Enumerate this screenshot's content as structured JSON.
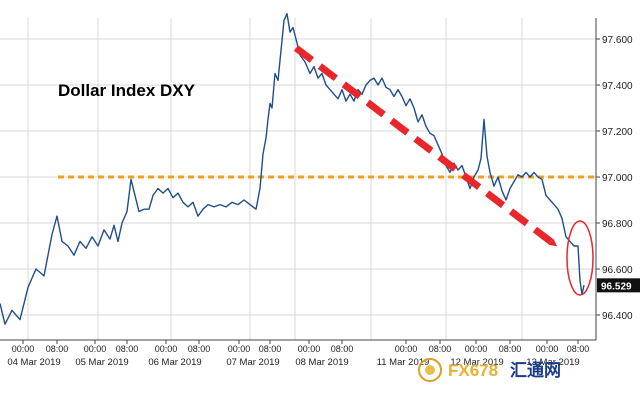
{
  "chart_data": {
    "type": "line",
    "title": "Dollar Index DXY",
    "xlabel": "",
    "ylabel": "",
    "ylim": [
      96.3,
      97.75
    ],
    "yticks": [
      "96.400",
      "96.600",
      "96.800",
      "97.000",
      "97.200",
      "97.400",
      "97.600"
    ],
    "time_ticks": [
      "00:00",
      "08:00",
      "00:00",
      "08:00",
      "00:00",
      "08:00",
      "00:00",
      "08:00",
      "00:00",
      "08:00",
      "00:00",
      "08:00",
      "00:00",
      "08:00",
      "00:00",
      "08:00"
    ],
    "dates": [
      "04 Mar 2019",
      "05 Mar 2019",
      "06 Mar 2019",
      "07 Mar 2019",
      "08 Mar 2019",
      "11 Mar 2019",
      "12 Mar 2019",
      "13 Mar 2019"
    ],
    "last_value": "96.529",
    "reference_level": 97.0,
    "grid": true,
    "colors": {
      "line": "#1f4e8c",
      "reference": "#f0a020",
      "arrow": "#e8262b",
      "highlight": "#e8262b"
    },
    "series": [
      {
        "values": [
          [
            0,
            96.45
          ],
          [
            5,
            96.36
          ],
          [
            12,
            96.42
          ],
          [
            20,
            96.38
          ],
          [
            28,
            96.52
          ],
          [
            36,
            96.6
          ],
          [
            44,
            96.57
          ],
          [
            52,
            96.75
          ],
          [
            57,
            96.83
          ],
          [
            62,
            96.72
          ],
          [
            68,
            96.7
          ],
          [
            74,
            96.66
          ],
          [
            80,
            96.72
          ],
          [
            86,
            96.69
          ],
          [
            92,
            96.74
          ],
          [
            98,
            96.7
          ],
          [
            104,
            96.77
          ],
          [
            110,
            96.73
          ],
          [
            114,
            96.79
          ],
          [
            118,
            96.72
          ],
          [
            122,
            96.8
          ],
          [
            127,
            96.85
          ],
          [
            131,
            96.99
          ],
          [
            135,
            96.92
          ],
          [
            139,
            96.85
          ],
          [
            144,
            96.86
          ],
          [
            149,
            96.86
          ],
          [
            153,
            96.92
          ],
          [
            158,
            96.95
          ],
          [
            163,
            96.93
          ],
          [
            168,
            96.95
          ],
          [
            173,
            96.91
          ],
          [
            178,
            96.93
          ],
          [
            183,
            96.89
          ],
          [
            188,
            96.87
          ],
          [
            193,
            96.89
          ],
          [
            198,
            96.83
          ],
          [
            203,
            96.86
          ],
          [
            208,
            96.88
          ],
          [
            214,
            96.87
          ],
          [
            220,
            96.88
          ],
          [
            226,
            96.87
          ],
          [
            232,
            96.89
          ],
          [
            238,
            96.88
          ],
          [
            244,
            96.9
          ],
          [
            250,
            96.88
          ],
          [
            256,
            96.86
          ],
          [
            260,
            96.95
          ],
          [
            263,
            97.1
          ],
          [
            266,
            97.17
          ],
          [
            268,
            97.25
          ],
          [
            270,
            97.32
          ],
          [
            272,
            97.3
          ],
          [
            275,
            97.45
          ],
          [
            278,
            97.42
          ],
          [
            281,
            97.55
          ],
          [
            284,
            97.68
          ],
          [
            287,
            97.71
          ],
          [
            290,
            97.63
          ],
          [
            293,
            97.65
          ],
          [
            296,
            97.6
          ],
          [
            300,
            97.53
          ],
          [
            305,
            97.5
          ],
          [
            310,
            97.45
          ],
          [
            314,
            97.48
          ],
          [
            318,
            97.43
          ],
          [
            322,
            97.45
          ],
          [
            326,
            97.4
          ],
          [
            330,
            97.38
          ],
          [
            334,
            97.36
          ],
          [
            338,
            97.34
          ],
          [
            342,
            97.38
          ],
          [
            346,
            97.33
          ],
          [
            350,
            97.36
          ],
          [
            354,
            97.33
          ],
          [
            358,
            97.38
          ],
          [
            362,
            97.36
          ],
          [
            366,
            97.4
          ],
          [
            370,
            97.42
          ],
          [
            374,
            97.43
          ],
          [
            378,
            97.4
          ],
          [
            382,
            97.43
          ],
          [
            386,
            97.39
          ],
          [
            390,
            97.38
          ],
          [
            394,
            97.35
          ],
          [
            398,
            97.38
          ],
          [
            402,
            97.35
          ],
          [
            406,
            97.31
          ],
          [
            410,
            97.34
          ],
          [
            414,
            97.3
          ],
          [
            418,
            97.24
          ],
          [
            422,
            97.27
          ],
          [
            426,
            97.22
          ],
          [
            430,
            97.19
          ],
          [
            434,
            97.18
          ],
          [
            438,
            97.14
          ],
          [
            442,
            97.1
          ],
          [
            446,
            97.05
          ],
          [
            450,
            97.02
          ],
          [
            454,
            97.06
          ],
          [
            458,
            97.03
          ],
          [
            462,
            97.05
          ],
          [
            466,
            97.0
          ],
          [
            470,
            96.95
          ],
          [
            474,
            97.0
          ],
          [
            478,
            97.03
          ],
          [
            481,
            97.08
          ],
          [
            484,
            97.25
          ],
          [
            487,
            97.09
          ],
          [
            490,
            97.02
          ],
          [
            494,
            96.96
          ],
          [
            498,
            97.0
          ],
          [
            502,
            96.94
          ],
          [
            506,
            96.9
          ],
          [
            510,
            96.95
          ],
          [
            514,
            96.98
          ],
          [
            518,
            97.01
          ],
          [
            522,
            97.0
          ],
          [
            526,
            97.02
          ],
          [
            530,
            97.0
          ],
          [
            534,
            97.02
          ],
          [
            538,
            97.0
          ],
          [
            542,
            96.99
          ],
          [
            546,
            96.92
          ],
          [
            550,
            96.9
          ],
          [
            554,
            96.88
          ],
          [
            558,
            96.86
          ],
          [
            562,
            96.82
          ],
          [
            566,
            96.74
          ],
          [
            570,
            96.72
          ],
          [
            574,
            96.7
          ],
          [
            578,
            96.7
          ],
          [
            580,
            96.55
          ],
          [
            582,
            96.49
          ],
          [
            584,
            96.53
          ]
        ]
      }
    ]
  },
  "watermark": {
    "logo_text": "FX678",
    "logo_suffix": "汇通网"
  }
}
